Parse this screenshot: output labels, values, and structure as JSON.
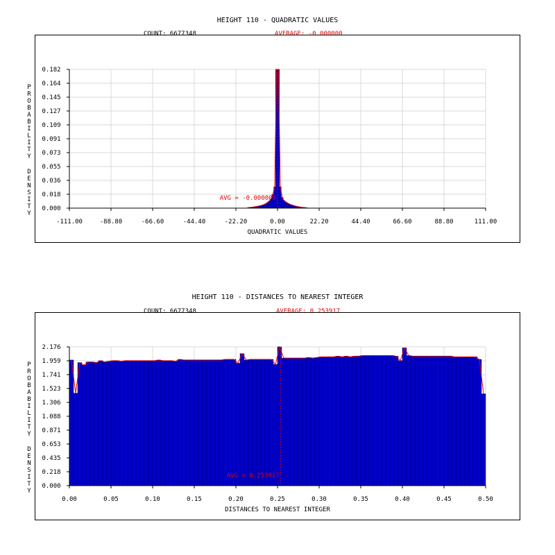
{
  "colors": {
    "bar": "#0000c8",
    "curve": "#e00000",
    "grid": "#d9d9d9",
    "text": "#000000"
  },
  "chart_data": [
    {
      "type": "bar",
      "title": "HEIGHT 110 - QUADRATIC VALUES",
      "count_text": "COUNT: 6677348",
      "average_text": "AVERAGE: -0.000000",
      "avg_annotation": "AVG = -0.000000",
      "avg_value": 0.0,
      "xlabel": "QUADRATIC VALUES",
      "ylabel": "PROBABILITY DENSITY",
      "xlim": [
        -111,
        111
      ],
      "ylim": [
        0,
        0.182
      ],
      "xticks": [
        "-111.00",
        "-88.80",
        "-66.60",
        "-44.40",
        "-22.20",
        "0.00",
        "22.20",
        "44.40",
        "66.60",
        "88.80",
        "111.00"
      ],
      "yticks": [
        "0.000",
        "0.018",
        "0.036",
        "0.055",
        "0.073",
        "0.091",
        "0.109",
        "0.127",
        "0.145",
        "0.164",
        "0.182"
      ],
      "bin_width": 1,
      "bins_x": [
        -16,
        -15,
        -14,
        -13,
        -12,
        -11,
        -10,
        -9,
        -8,
        -7,
        -6,
        -5,
        -4,
        -3,
        -2,
        -1,
        0,
        1,
        2,
        3,
        4,
        5,
        6,
        7,
        8,
        9,
        10,
        11,
        12,
        13,
        14,
        15
      ],
      "bins_y": [
        0.0008,
        0.001,
        0.0013,
        0.0016,
        0.002,
        0.0025,
        0.003,
        0.0037,
        0.0045,
        0.0055,
        0.007,
        0.009,
        0.012,
        0.018,
        0.028,
        0.182,
        0.182,
        0.028,
        0.014,
        0.01,
        0.008,
        0.0065,
        0.0052,
        0.0043,
        0.0035,
        0.0028,
        0.0022,
        0.0017,
        0.0013,
        0.001,
        0.0008,
        0.0005
      ],
      "grid": true
    },
    {
      "type": "bar",
      "title": "HEIGHT 110 - DISTANCES TO NEAREST INTEGER",
      "count_text": "COUNT: 6677348",
      "average_text": "AVERAGE: 0.253917",
      "avg_annotation": "AVG = 0.253917",
      "avg_value": 0.253917,
      "xlabel": "DISTANCES TO NEAREST INTEGER",
      "ylabel": "PROBABILITY DENSITY",
      "xlim": [
        0,
        0.5
      ],
      "ylim": [
        0,
        2.176
      ],
      "xticks": [
        "0.00",
        "0.05",
        "0.10",
        "0.15",
        "0.20",
        "0.25",
        "0.30",
        "0.35",
        "0.40",
        "0.45",
        "0.50"
      ],
      "yticks": [
        "0.000",
        "0.218",
        "0.435",
        "0.653",
        "0.871",
        "1.088",
        "1.306",
        "1.523",
        "1.741",
        "1.959",
        "2.176"
      ],
      "bin_width": 0.005,
      "bins_x": [
        0.0,
        0.005,
        0.01,
        0.015,
        0.02,
        0.025,
        0.03,
        0.035,
        0.04,
        0.045,
        0.05,
        0.055,
        0.06,
        0.065,
        0.07,
        0.075,
        0.08,
        0.085,
        0.09,
        0.095,
        0.1,
        0.105,
        0.11,
        0.115,
        0.12,
        0.125,
        0.13,
        0.135,
        0.14,
        0.145,
        0.15,
        0.155,
        0.16,
        0.165,
        0.17,
        0.175,
        0.18,
        0.185,
        0.19,
        0.195,
        0.2,
        0.205,
        0.21,
        0.215,
        0.22,
        0.225,
        0.23,
        0.235,
        0.24,
        0.245,
        0.25,
        0.255,
        0.26,
        0.265,
        0.27,
        0.275,
        0.28,
        0.285,
        0.29,
        0.295,
        0.3,
        0.305,
        0.31,
        0.315,
        0.32,
        0.325,
        0.33,
        0.335,
        0.34,
        0.345,
        0.35,
        0.355,
        0.36,
        0.365,
        0.37,
        0.375,
        0.38,
        0.385,
        0.39,
        0.395,
        0.4,
        0.405,
        0.41,
        0.415,
        0.42,
        0.425,
        0.43,
        0.435,
        0.44,
        0.445,
        0.45,
        0.455,
        0.46,
        0.465,
        0.47,
        0.475,
        0.48,
        0.485,
        0.49,
        0.495
      ],
      "bins_y": [
        1.97,
        1.45,
        1.93,
        1.89,
        1.94,
        1.94,
        1.93,
        1.96,
        1.94,
        1.95,
        1.96,
        1.96,
        1.95,
        1.96,
        1.96,
        1.96,
        1.96,
        1.96,
        1.96,
        1.96,
        1.96,
        1.97,
        1.96,
        1.96,
        1.96,
        1.95,
        1.98,
        1.97,
        1.97,
        1.97,
        1.97,
        1.97,
        1.97,
        1.97,
        1.97,
        1.97,
        1.97,
        1.98,
        1.98,
        1.98,
        1.92,
        2.07,
        1.97,
        1.98,
        1.98,
        1.98,
        1.98,
        1.98,
        1.98,
        1.9,
        2.176,
        2.0,
        2.0,
        2.0,
        2.0,
        2.0,
        2.0,
        2.01,
        2.0,
        2.01,
        2.02,
        2.02,
        2.02,
        2.02,
        2.03,
        2.02,
        2.03,
        2.02,
        2.03,
        2.03,
        2.04,
        2.04,
        2.04,
        2.04,
        2.04,
        2.04,
        2.04,
        2.04,
        2.03,
        1.96,
        2.16,
        2.04,
        2.03,
        2.03,
        2.03,
        2.03,
        2.03,
        2.03,
        2.03,
        2.03,
        2.03,
        2.03,
        2.02,
        2.02,
        2.02,
        2.02,
        2.02,
        2.02,
        1.98,
        1.44
      ],
      "grid": true
    }
  ]
}
